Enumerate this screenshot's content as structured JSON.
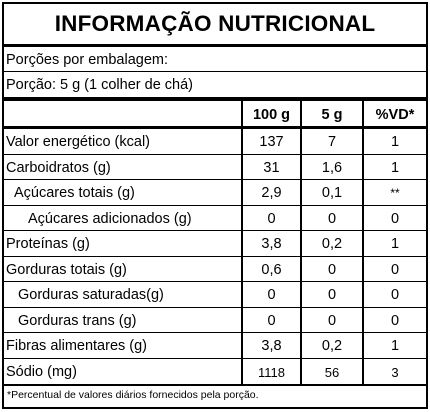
{
  "title": "INFORMAÇÃO NUTRICIONAL",
  "servings_per_package": "Porções por embalagem:",
  "serving_size": "Porção: 5 g (1 colher de chá)",
  "columns": [
    "100 g",
    "5 g",
    "%VD*"
  ],
  "rows": [
    {
      "name": "Valor energético (kcal)",
      "v100": "137",
      "v5": "7",
      "vd": "1"
    },
    {
      "name": "Carboidratos (g)",
      "v100": "31",
      "v5": "1,6",
      "vd": "1"
    },
    {
      "name": "Açúcares totais (g)",
      "v100": "2,9",
      "v5": "0,1",
      "vd": "**"
    },
    {
      "name": "Açúcares adicionados (g)",
      "v100": "0",
      "v5": "0",
      "vd": "0"
    },
    {
      "name": "Proteínas (g)",
      "v100": "3,8",
      "v5": "0,2",
      "vd": "1"
    },
    {
      "name": "Gorduras totais (g)",
      "v100": "0,6",
      "v5": "0",
      "vd": "0"
    },
    {
      "name": "Gorduras saturadas(g)",
      "v100": "0",
      "v5": "0",
      "vd": "0"
    },
    {
      "name": "Gorduras trans (g)",
      "v100": "0",
      "v5": "0",
      "vd": "0"
    },
    {
      "name": "Fibras alimentares (g)",
      "v100": "3,8",
      "v5": "0,2",
      "vd": "1"
    },
    {
      "name": "Sódio (mg)",
      "v100": "1118",
      "v5": "56",
      "vd": "3"
    }
  ],
  "footnote": "*Percentual de valores diários fornecidos pela porção."
}
